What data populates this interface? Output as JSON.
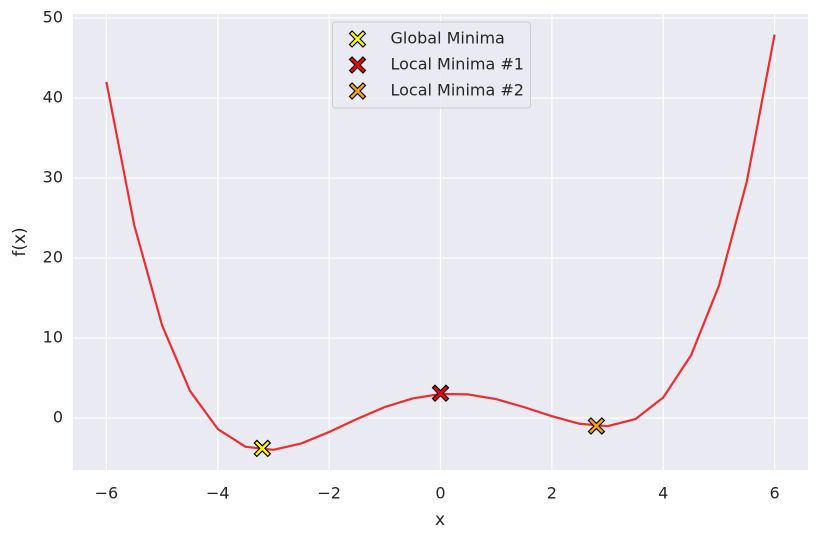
{
  "chart_data": {
    "type": "line",
    "xlabel": "x",
    "ylabel": "f(x)",
    "curve": {
      "color": "#ee2e2e",
      "x": [
        -6,
        -5.5,
        -5,
        -4.5,
        -4,
        -3.5,
        -3,
        -2.5,
        -2,
        -1.5,
        -1,
        -0.5,
        0,
        0.5,
        1,
        1.5,
        2,
        2.5,
        3,
        3.5,
        4,
        4.5,
        5,
        5.5,
        6
      ],
      "values": [
        42.01,
        24.11,
        11.58,
        3.4,
        -1.38,
        -3.6,
        -3.98,
        -3.18,
        -1.75,
        -0.12,
        1.37,
        2.45,
        3,
        2.95,
        2.36,
        1.36,
        0.23,
        -0.72,
        -1.02,
        -0.14,
        2.56,
        7.84,
        16.52,
        29.53,
        47.93
      ]
    },
    "markers": [
      {
        "name": "Global Minima",
        "color": "#ffff00",
        "x": -3.2,
        "y": -3.8
      },
      {
        "name": "Local Minima #1",
        "color": "#ff0000",
        "x": 0,
        "y": 3.1
      },
      {
        "name": "Local Minima #2",
        "color": "#ffa500",
        "x": 2.8,
        "y": -1.0
      }
    ],
    "xlim": [
      -6.6,
      6.6
    ],
    "ylim": [
      -6.5,
      50.5
    ],
    "xticks": [
      {
        "value": -6,
        "label": "−6"
      },
      {
        "value": -4,
        "label": "−4"
      },
      {
        "value": -2,
        "label": "−2"
      },
      0,
      2,
      4,
      6
    ],
    "yticks": [
      0,
      10,
      20,
      30,
      40,
      50
    ],
    "grid": true,
    "legend": "upper center"
  }
}
